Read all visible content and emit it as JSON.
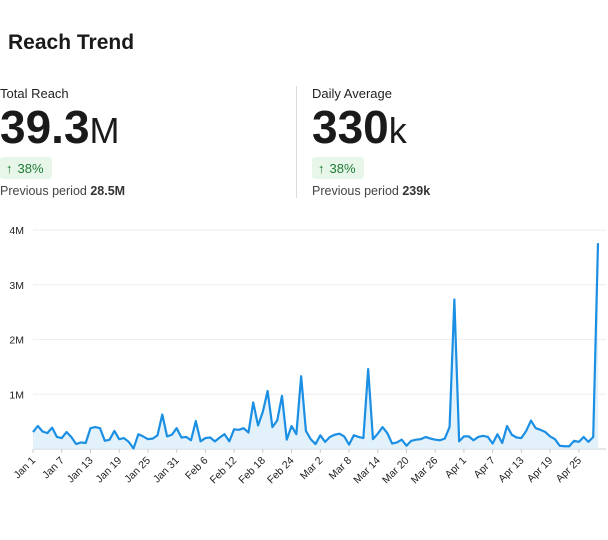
{
  "title": "Reach Trend",
  "stats": [
    {
      "label": "Total Reach",
      "value": "39.3",
      "unit": "M",
      "change": "38%",
      "previous_label": "Previous period",
      "previous_value": "28.5M"
    },
    {
      "label": "Daily Average",
      "value": "330",
      "unit": "k",
      "change": "38%",
      "previous_label": "Previous period",
      "previous_value": "239k"
    }
  ],
  "colors": {
    "line": "#1a8fe3",
    "fill": "#dcedf9",
    "positive": "#1e7a34",
    "positive_bg": "#e8f6ea"
  },
  "icons": {
    "change": "arrow-up-icon"
  },
  "chart_data": {
    "type": "area",
    "ylim": [
      0,
      4000000
    ],
    "y_ticks": [
      1000000,
      2000000,
      3000000,
      4000000
    ],
    "y_tick_labels": [
      "1M",
      "2M",
      "3M",
      "4M"
    ],
    "x_tick_labels": [
      "Jan 1",
      "Jan 7",
      "Jan 13",
      "Jan 19",
      "Jan 25",
      "Jan 31",
      "Feb 6",
      "Feb 12",
      "Feb 18",
      "Feb 24",
      "Mar 2",
      "Mar 8",
      "Mar 14",
      "Mar 20",
      "Mar 26",
      "Apr 1",
      "Apr 7",
      "Apr 13",
      "Apr 19",
      "Apr 25"
    ],
    "x_tick_step_days": 6,
    "grid": true,
    "series": [
      {
        "values": [
          310000,
          420000,
          320000,
          290000,
          390000,
          220000,
          200000,
          310000,
          220000,
          90000,
          120000,
          110000,
          380000,
          400000,
          380000,
          150000,
          170000,
          330000,
          180000,
          200000,
          130000,
          10000,
          270000,
          230000,
          180000,
          190000,
          250000,
          630000,
          230000,
          260000,
          380000,
          210000,
          220000,
          160000,
          510000,
          140000,
          200000,
          210000,
          140000,
          210000,
          270000,
          140000,
          360000,
          350000,
          380000,
          300000,
          850000,
          430000,
          680000,
          1060000,
          400000,
          520000,
          970000,
          170000,
          420000,
          270000,
          1330000,
          330000,
          180000,
          90000,
          250000,
          130000,
          220000,
          260000,
          280000,
          230000,
          80000,
          250000,
          220000,
          200000,
          1460000,
          180000,
          280000,
          400000,
          290000,
          100000,
          120000,
          170000,
          60000,
          150000,
          170000,
          180000,
          220000,
          190000,
          170000,
          160000,
          190000,
          400000,
          2730000,
          140000,
          230000,
          230000,
          160000,
          220000,
          240000,
          220000,
          100000,
          270000,
          110000,
          420000,
          260000,
          210000,
          200000,
          330000,
          520000,
          380000,
          350000,
          310000,
          230000,
          180000,
          60000,
          50000,
          50000,
          150000,
          130000,
          220000,
          130000,
          220000,
          3760000
        ]
      }
    ]
  }
}
